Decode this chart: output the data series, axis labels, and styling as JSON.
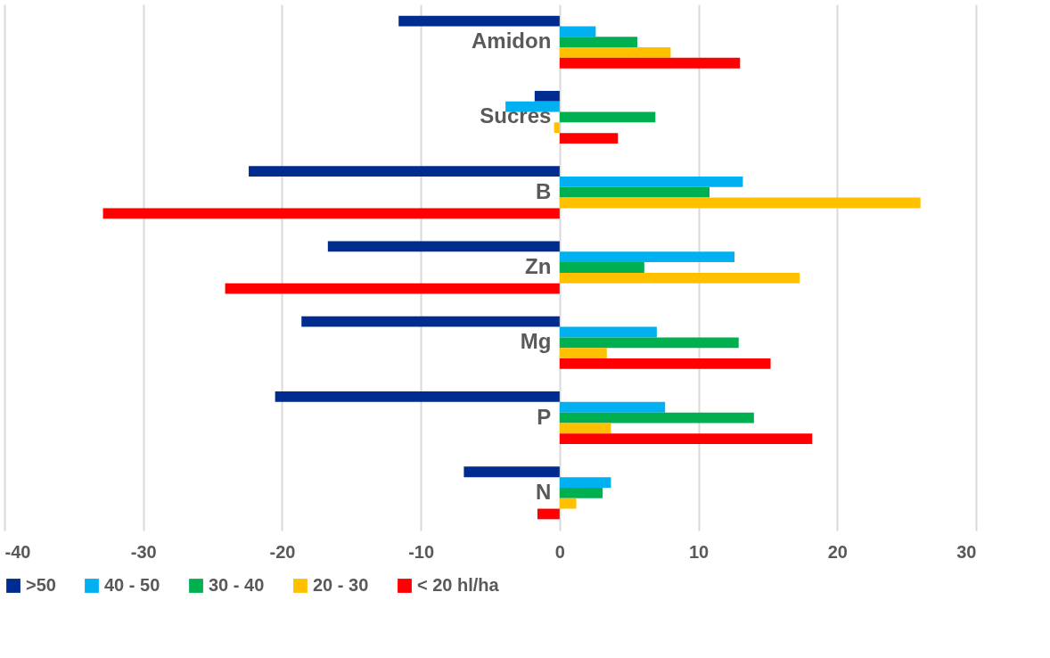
{
  "chart_data": {
    "type": "bar",
    "orientation": "horizontal",
    "categories": [
      "Amidon",
      "Sucres",
      "B",
      "Zn",
      "Mg",
      "P",
      "N"
    ],
    "series": [
      {
        "name": ">50",
        "color": "#002b8f",
        "values": [
          -11.6,
          -1.8,
          -22.4,
          -16.7,
          -18.6,
          -20.5,
          -6.9
        ]
      },
      {
        "name": "40 - 50",
        "color": "#00b0f0",
        "values": [
          2.6,
          -3.9,
          13.2,
          12.6,
          7.0,
          7.6,
          3.7
        ]
      },
      {
        "name": "30 - 40",
        "color": "#00b050",
        "values": [
          5.6,
          6.9,
          10.8,
          6.1,
          12.9,
          14.0,
          3.1
        ]
      },
      {
        "name": "20 - 30",
        "color": "#ffc000",
        "values": [
          8.0,
          -0.4,
          26.0,
          17.3,
          3.4,
          3.7,
          1.2
        ]
      },
      {
        "name": "< 20 hl/ha",
        "color": "#ff0000",
        "values": [
          13.0,
          4.2,
          -32.9,
          -24.1,
          15.2,
          18.2,
          -1.6
        ]
      }
    ],
    "xlim": [
      -40,
      30
    ],
    "xticks": [
      -40,
      -30,
      -20,
      -10,
      0,
      10,
      20,
      30
    ],
    "grid": "x",
    "legend": "bottom"
  }
}
